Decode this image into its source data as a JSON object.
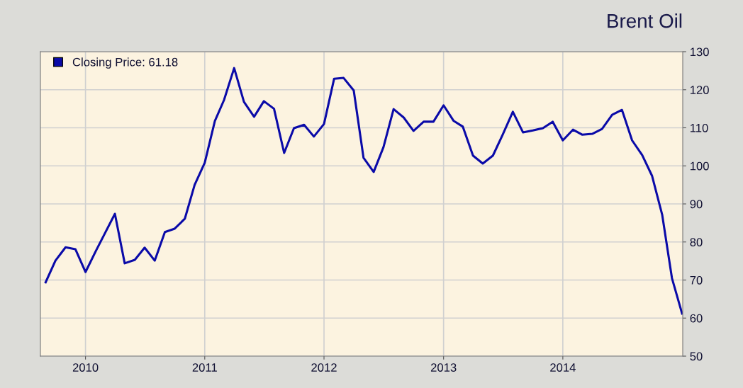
{
  "chart_data": {
    "type": "line",
    "title": "Brent Oil",
    "x": [
      "2009-09",
      "2009-10",
      "2009-11",
      "2009-12",
      "2010-01",
      "2010-02",
      "2010-03",
      "2010-04",
      "2010-05",
      "2010-06",
      "2010-07",
      "2010-08",
      "2010-09",
      "2010-10",
      "2010-11",
      "2010-12",
      "2011-01",
      "2011-02",
      "2011-03",
      "2011-04",
      "2011-05",
      "2011-06",
      "2011-07",
      "2011-08",
      "2011-09",
      "2011-10",
      "2011-11",
      "2011-12",
      "2012-01",
      "2012-02",
      "2012-03",
      "2012-04",
      "2012-05",
      "2012-06",
      "2012-07",
      "2012-08",
      "2012-09",
      "2012-10",
      "2012-11",
      "2012-12",
      "2013-01",
      "2013-02",
      "2013-03",
      "2013-04",
      "2013-05",
      "2013-06",
      "2013-07",
      "2013-08",
      "2013-09",
      "2013-10",
      "2013-11",
      "2013-12",
      "2014-01",
      "2014-02",
      "2014-03",
      "2014-04",
      "2014-05",
      "2014-06",
      "2014-07",
      "2014-08",
      "2014-09",
      "2014-10",
      "2014-11",
      "2014-12",
      "2015-01"
    ],
    "series": [
      {
        "name": "Closing Price: 61.18",
        "color": "#0a0aa8",
        "values": [
          69.4,
          75.1,
          78.6,
          78.1,
          72.1,
          77.5,
          82.2,
          87.4,
          74.4,
          75.3,
          78.5,
          75.1,
          82.6,
          83.5,
          86.1,
          95.0,
          100.8,
          111.8,
          117.3,
          125.7,
          116.8,
          112.9,
          117.0,
          115.0,
          103.4,
          109.9,
          110.8,
          107.7,
          111.0,
          122.9,
          123.1,
          119.8,
          102.1,
          98.4,
          104.9,
          114.9,
          112.7,
          109.2,
          111.6,
          111.6,
          115.9,
          111.8,
          110.3,
          102.7,
          100.6,
          102.7,
          108.2,
          114.2,
          108.8,
          109.3,
          109.9,
          111.6,
          106.7,
          109.5,
          108.2,
          108.4,
          109.7,
          113.4,
          114.7,
          106.7,
          102.8,
          97.4,
          87.2,
          70.5,
          61.18
        ]
      }
    ],
    "xlim": [
      "2009-08-16",
      "2015-01-03"
    ],
    "xticks": [
      {
        "value": "2010-01",
        "label": "2010"
      },
      {
        "value": "2011-01",
        "label": "2011"
      },
      {
        "value": "2012-01",
        "label": "2012"
      },
      {
        "value": "2013-01",
        "label": "2013"
      },
      {
        "value": "2014-01",
        "label": "2014"
      }
    ],
    "ylim": [
      50,
      130
    ],
    "yticks": [
      50,
      60,
      70,
      80,
      90,
      100,
      110,
      120,
      130
    ],
    "grid": true,
    "legend": "top left",
    "marker": "none",
    "line_style": "solid"
  }
}
